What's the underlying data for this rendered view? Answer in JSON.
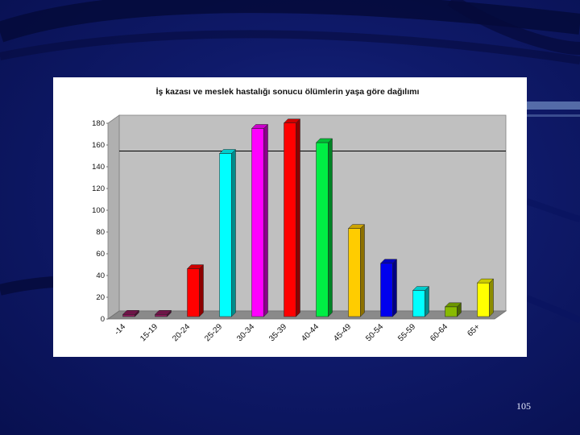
{
  "slide": {
    "page_number": "105",
    "background_color": "#0f1a6a"
  },
  "chart_data": {
    "type": "bar",
    "title": "İş kazası ve meslek hastalığı sonucu ölümlerin yaşa göre dağılımı",
    "categories": [
      "-14",
      "15-19",
      "20-24",
      "25-29",
      "30-34",
      "35-39",
      "40-44",
      "45-49",
      "50-54",
      "55-59",
      "60-64",
      "65+"
    ],
    "values": [
      2,
      2,
      44,
      150,
      173,
      178,
      160,
      81,
      49,
      24,
      9,
      31
    ],
    "colors": [
      "#8a1a5a",
      "#8a1a5a",
      "#ff0000",
      "#00ffff",
      "#ff00ff",
      "#ff0000",
      "#00ee44",
      "#ffcc00",
      "#0000ee",
      "#00ffff",
      "#88bb00",
      "#ffff00"
    ],
    "ylim": [
      0,
      180
    ],
    "yticks": [
      "0",
      "20",
      "40",
      "60",
      "80",
      "100",
      "120",
      "140",
      "160",
      "180"
    ],
    "xlabel": "",
    "ylabel": "",
    "grid": false,
    "reference_line": 147,
    "plot_background": "#c0c0c0"
  }
}
